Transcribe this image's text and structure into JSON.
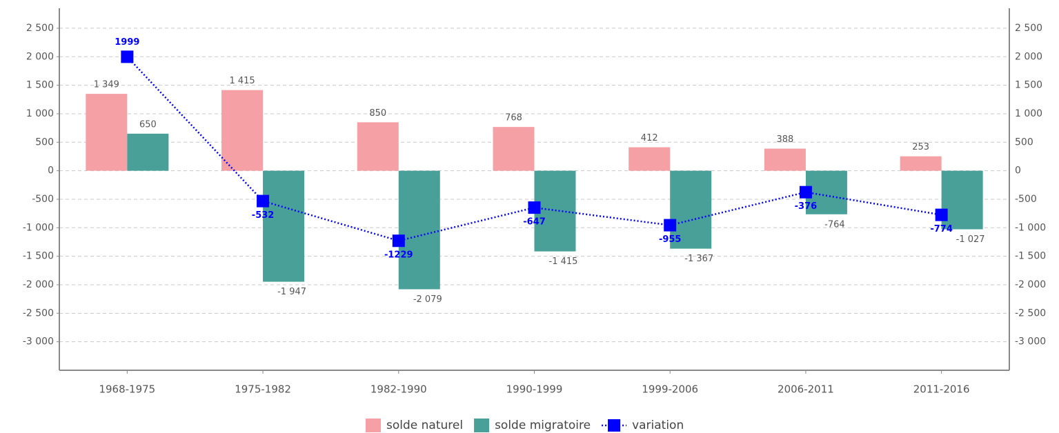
{
  "chart_data": {
    "type": "bar",
    "categories": [
      "1968-1975",
      "1975-1982",
      "1982-1990",
      "1990-1999",
      "1999-2006",
      "2006-2011",
      "2011-2016"
    ],
    "series": [
      {
        "name": "solde naturel",
        "color": "#f4a0a5",
        "type": "bar",
        "values": [
          1349,
          1415,
          850,
          768,
          412,
          388,
          253
        ],
        "value_labels": [
          "1 349",
          "1 415",
          "850",
          "768",
          "412",
          "388",
          "253"
        ]
      },
      {
        "name": "solde migratoire",
        "color": "#48a099",
        "type": "bar",
        "values": [
          650,
          -1947,
          -2079,
          -1415,
          -1367,
          -764,
          -1027
        ],
        "value_labels": [
          "650",
          "-1 947",
          "-2 079",
          "-1 415",
          "-1 367",
          "-764",
          "-1 027"
        ]
      },
      {
        "name": "variation",
        "color": "#0000ff",
        "type": "line",
        "values": [
          1999,
          -532,
          -1229,
          -647,
          -955,
          -376,
          -774
        ]
      }
    ],
    "ylim": [
      -3500,
      2850
    ],
    "yticks": [
      {
        "value": 2500,
        "label": "2 500"
      },
      {
        "value": 2000,
        "label": "2 000"
      },
      {
        "value": 1500,
        "label": "1 500"
      },
      {
        "value": 1000,
        "label": "1 000"
      },
      500,
      0,
      -500,
      {
        "value": -1000,
        "label": "-1 000"
      },
      {
        "value": -1500,
        "label": "-1 500"
      },
      {
        "value": -2000,
        "label": "-2 000"
      },
      {
        "value": -2500,
        "label": "-2 500"
      },
      {
        "value": -3000,
        "label": "-3 000"
      }
    ],
    "grid": true,
    "legend": "bottom"
  }
}
